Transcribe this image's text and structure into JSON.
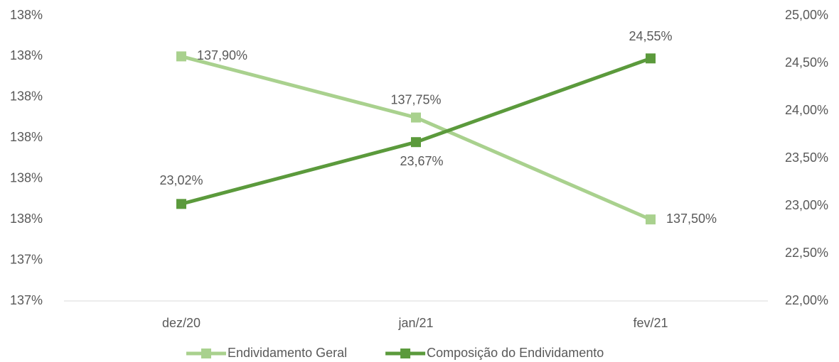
{
  "chart_data": {
    "type": "line",
    "categories": [
      "dez/20",
      "jan/21",
      "fev/21"
    ],
    "series": [
      {
        "name": "Endividamento Geral",
        "color": "#a9d18e",
        "values": [
          137.9,
          137.75,
          137.5
        ],
        "value_labels": [
          "137,90%",
          "137,75%",
          "137,50%"
        ]
      },
      {
        "name": "Composição do Endividamento",
        "color": "#5b9a3c",
        "axis": "y2",
        "values": [
          23.02,
          23.67,
          24.55
        ],
        "value_labels": [
          "23,02%",
          "23,67%",
          "24,55%"
        ]
      }
    ],
    "ylim": [
      137.3,
      138.0
    ],
    "yticks": [
      {
        "value": 137.3,
        "label": "137%"
      },
      {
        "value": 137.4,
        "label": "137%"
      },
      {
        "value": 137.5,
        "label": "138%"
      },
      {
        "value": 137.6,
        "label": "138%"
      },
      {
        "value": 137.7,
        "label": "138%"
      },
      {
        "value": 137.8,
        "label": "138%"
      },
      {
        "value": 137.9,
        "label": "138%"
      },
      {
        "value": 138.0,
        "label": "138%"
      }
    ],
    "y2lim": [
      22,
      25
    ],
    "y2ticks": [
      {
        "value": 22,
        "label": "22,00%"
      },
      {
        "value": 22.5,
        "label": "22,50%"
      },
      {
        "value": 23,
        "label": "23,00%"
      },
      {
        "value": 23.5,
        "label": "23,50%"
      },
      {
        "value": 24,
        "label": "24,00%"
      },
      {
        "value": 24.5,
        "label": "24,50%"
      },
      {
        "value": 25,
        "label": "25,00%"
      }
    ],
    "legend": "bottom"
  }
}
